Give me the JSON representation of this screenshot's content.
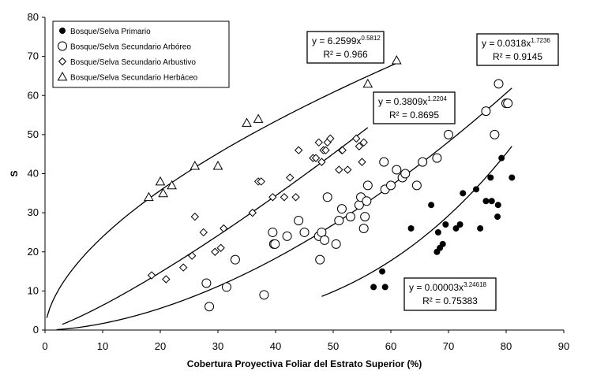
{
  "chart_data": {
    "type": "scatter",
    "title": "",
    "xlabel": "Cobertura Proyectiva Foliar del Estrato Superior (%)",
    "ylabel": "S",
    "xlim": [
      0,
      90
    ],
    "ylim": [
      0,
      80
    ],
    "x_ticks": [
      "0",
      "10",
      "20",
      "30",
      "40",
      "50",
      "60",
      "70",
      "80",
      "90"
    ],
    "y_ticks": [
      "0",
      "10",
      "20",
      "30",
      "40",
      "50",
      "60",
      "70",
      "80"
    ],
    "grid": false,
    "legend_position": "top-left",
    "series": [
      {
        "name": "Bosque/Selva Primario",
        "marker": "filled-circle",
        "points": [
          [
            57,
            11
          ],
          [
            58.5,
            15
          ],
          [
            59,
            11
          ],
          [
            63.5,
            26
          ],
          [
            67,
            32
          ],
          [
            68,
            20
          ],
          [
            68.2,
            25
          ],
          [
            68.5,
            21
          ],
          [
            69,
            22
          ],
          [
            69.5,
            27
          ],
          [
            71.3,
            26
          ],
          [
            72,
            27
          ],
          [
            72.5,
            35
          ],
          [
            74.8,
            36
          ],
          [
            75.5,
            26
          ],
          [
            76.5,
            33
          ],
          [
            77.3,
            39
          ],
          [
            77.5,
            33
          ],
          [
            78.5,
            29
          ],
          [
            78.6,
            32
          ],
          [
            79.2,
            44
          ],
          [
            81,
            39
          ]
        ],
        "fit": {
          "a": 3e-05,
          "b": 3.24618,
          "x_range": [
            48,
            81
          ],
          "equation": "y = 0.00003x",
          "exponent": "3.24618",
          "r2": "R² = 0.75383"
        }
      },
      {
        "name": "Bosque/Selva Secundario Arbóreo",
        "marker": "open-circle",
        "points": [
          [
            28,
            12
          ],
          [
            28.5,
            6
          ],
          [
            31.5,
            11
          ],
          [
            33,
            18
          ],
          [
            38,
            9
          ],
          [
            39.5,
            25
          ],
          [
            39.7,
            22
          ],
          [
            39.9,
            22
          ],
          [
            42,
            24
          ],
          [
            44,
            28
          ],
          [
            45,
            25
          ],
          [
            47.5,
            24
          ],
          [
            47.7,
            18
          ],
          [
            48,
            25
          ],
          [
            48.5,
            23
          ],
          [
            49,
            34
          ],
          [
            50.5,
            22
          ],
          [
            51,
            28
          ],
          [
            51.5,
            31
          ],
          [
            53,
            29
          ],
          [
            54.5,
            32
          ],
          [
            54.8,
            34
          ],
          [
            55.3,
            26
          ],
          [
            55.5,
            29
          ],
          [
            55.8,
            33
          ],
          [
            56,
            37
          ],
          [
            58.8,
            43
          ],
          [
            59,
            36
          ],
          [
            60,
            37
          ],
          [
            61,
            41
          ],
          [
            62,
            39
          ],
          [
            62.5,
            40
          ],
          [
            64.5,
            37
          ],
          [
            65.5,
            43
          ],
          [
            68,
            44
          ],
          [
            69.5,
            54
          ],
          [
            70,
            50
          ],
          [
            76.5,
            56
          ],
          [
            78,
            50
          ],
          [
            78.7,
            63
          ],
          [
            80,
            58
          ],
          [
            80.3,
            58
          ]
        ],
        "fit": {
          "a": 0.0318,
          "b": 1.7236,
          "x_range": [
            2,
            81
          ],
          "equation": "y = 0.0318x",
          "exponent": "1.7236",
          "r2": "R² = 0.9145"
        }
      },
      {
        "name": "Bosque/Selva Secundario Arbustivo",
        "marker": "open-diamond",
        "points": [
          [
            18.5,
            14
          ],
          [
            21,
            13
          ],
          [
            24,
            16
          ],
          [
            25.5,
            19
          ],
          [
            26,
            29
          ],
          [
            27.5,
            25
          ],
          [
            29.5,
            20
          ],
          [
            30.5,
            21
          ],
          [
            31,
            26
          ],
          [
            36,
            30
          ],
          [
            37,
            38
          ],
          [
            37.5,
            38
          ],
          [
            39.5,
            34
          ],
          [
            41.5,
            34
          ],
          [
            42.5,
            39
          ],
          [
            43.5,
            34
          ],
          [
            44,
            46
          ],
          [
            46.5,
            44
          ],
          [
            47,
            44
          ],
          [
            47.5,
            48
          ],
          [
            48,
            43
          ],
          [
            48.3,
            46
          ],
          [
            48.7,
            46
          ],
          [
            49,
            48
          ],
          [
            49.5,
            49
          ],
          [
            51,
            41
          ],
          [
            51.5,
            46
          ],
          [
            51.6,
            46
          ],
          [
            52.5,
            41
          ],
          [
            54,
            49
          ],
          [
            54.5,
            47
          ],
          [
            55,
            43
          ],
          [
            55.3,
            48
          ]
        ],
        "fit": {
          "a": 0.3809,
          "b": 1.2204,
          "x_range": [
            3,
            56
          ],
          "equation": "y = 0.3809x",
          "exponent": "1.2204",
          "r2": "R² = 0.8695"
        }
      },
      {
        "name": "Bosque/Selva Secundario Herbáceo",
        "marker": "open-triangle",
        "points": [
          [
            18,
            34
          ],
          [
            20,
            38
          ],
          [
            20.5,
            35
          ],
          [
            22,
            37
          ],
          [
            26,
            42
          ],
          [
            30,
            42
          ],
          [
            35,
            53
          ],
          [
            37,
            54
          ],
          [
            56,
            63
          ],
          [
            61,
            69
          ]
        ],
        "fit": {
          "a": 6.2599,
          "b": 0.5812,
          "x_range": [
            0.3,
            61
          ],
          "equation": "y = 6.2599x",
          "exponent": "0.5812",
          "r2": "R² = 0.966"
        }
      }
    ]
  }
}
